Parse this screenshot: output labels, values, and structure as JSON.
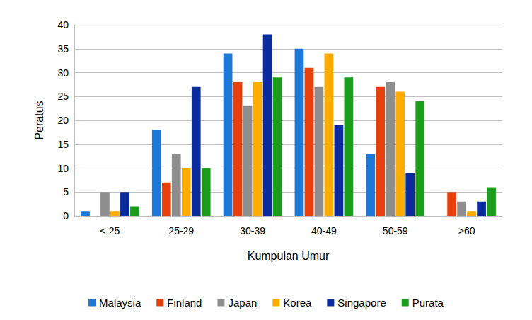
{
  "chart_data": {
    "type": "bar",
    "x_label": "Kumpulan Umur",
    "y_label": "Peratus",
    "categories": [
      "< 25",
      "25-29",
      "30-39",
      "40-49",
      "50-59",
      ">60"
    ],
    "series": [
      {
        "name": "Malaysia",
        "color": "#1E78D8",
        "values": [
          1,
          18,
          34,
          35,
          13,
          0
        ]
      },
      {
        "name": "Finland",
        "color": "#E8400C",
        "values": [
          0,
          7,
          28,
          31,
          27,
          5
        ]
      },
      {
        "name": "Japan",
        "color": "#8E8E8E",
        "values": [
          5,
          13,
          23,
          27,
          28,
          3
        ]
      },
      {
        "name": "Korea",
        "color": "#FFAC00",
        "values": [
          1,
          10,
          28,
          34,
          26,
          1
        ]
      },
      {
        "name": "Singapore",
        "color": "#0A2A9E",
        "values": [
          5,
          27,
          38,
          19,
          9,
          3
        ]
      },
      {
        "name": "Purata",
        "color": "#1C9C1C",
        "values": [
          2,
          10,
          29,
          29,
          24,
          6
        ]
      }
    ],
    "ylim": [
      0,
      40
    ],
    "yticks": [
      0,
      5,
      10,
      15,
      20,
      25,
      30,
      35,
      40
    ],
    "grid": true,
    "legend": "bottom"
  }
}
